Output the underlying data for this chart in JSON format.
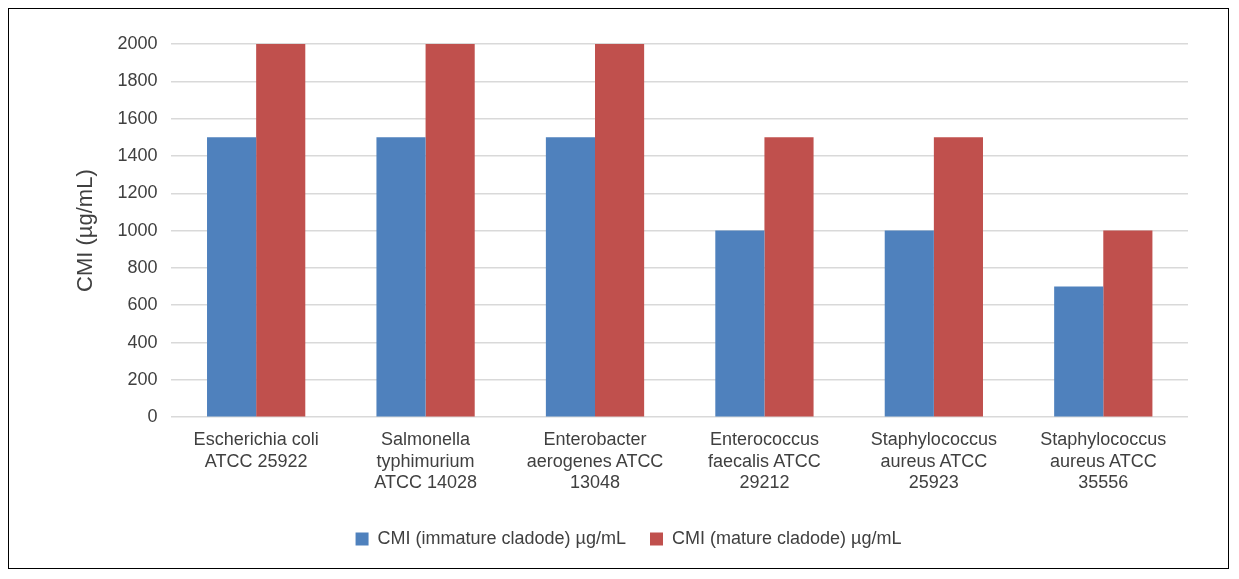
{
  "chart_data": {
    "type": "bar",
    "ylabel": "CMI (µg/mL)",
    "categories": [
      "Escherichia coli ATCC 25922",
      "Salmonella typhimurium ATCC 14028",
      "Enterobacter aerogenes ATCC 13048",
      "Enterococcus faecalis ATCC 29212",
      "Staphylococcus aureus ATCC 25923",
      "Staphylococcus aureus ATCC 35556"
    ],
    "series": [
      {
        "name": "CMI (immature cladode) µg/mL",
        "color": "#4f81bd",
        "values": [
          1500,
          1500,
          1500,
          1000,
          1000,
          700
        ]
      },
      {
        "name": "CMI (mature cladode) µg/mL",
        "color": "#c0504d",
        "values": [
          2000,
          2000,
          2000,
          1500,
          1500,
          1000
        ]
      }
    ],
    "ylim": [
      0,
      2000
    ],
    "yticks": [
      0,
      200,
      400,
      600,
      800,
      1000,
      1200,
      1400,
      1600,
      1800,
      2000
    ],
    "grid": "y",
    "legend": "bottom"
  }
}
